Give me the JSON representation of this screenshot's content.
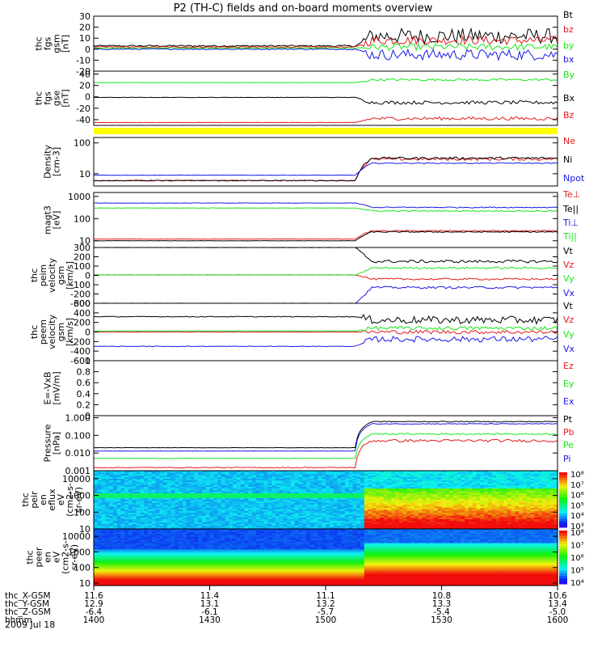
{
  "title": "P2 (TH-C) fields and on-board moments overview",
  "date": "2009 Jul 18",
  "colors": {
    "black": "#000000",
    "red": "#e41a1c",
    "green": "#19e619",
    "blue": "#1919e6",
    "yellow": "#ffff00"
  },
  "chart_data": [
    {
      "type": "line",
      "panel": "fgs-gsm",
      "ylabel_lines": [
        "thc",
        "fgs",
        "gsm",
        "[nT]"
      ],
      "yticks": [
        30,
        20,
        10,
        0,
        -10,
        -20
      ],
      "ylim": [
        -20,
        30
      ],
      "x_range": [
        "14:00",
        "16:00"
      ],
      "series": [
        {
          "name": "Bt",
          "color": "black",
          "before": 3,
          "after": 12,
          "noise": 7
        },
        {
          "name": "bz",
          "color": "red",
          "before": 2,
          "after": 8,
          "noise": 4
        },
        {
          "name": "by",
          "color": "green",
          "before": 1,
          "after": 2,
          "noise": 3
        },
        {
          "name": "bx",
          "color": "blue",
          "before": 0,
          "after": -5,
          "noise": 5
        }
      ]
    },
    {
      "type": "line",
      "panel": "fgs-gse",
      "ylabel_lines": [
        "thc",
        "fgs",
        "gse",
        "[nT]"
      ],
      "yticks": [
        40,
        20,
        0,
        -20,
        -40
      ],
      "ylim": [
        -50,
        45
      ],
      "series": [
        {
          "name": "By",
          "color": "green",
          "before": 25,
          "after": 30,
          "noise": 2
        },
        {
          "name": "Bx",
          "color": "black",
          "before": -1,
          "after": -10,
          "noise": 3
        },
        {
          "name": "Bz",
          "color": "red",
          "before": -45,
          "after": -38,
          "noise": 3
        }
      ]
    },
    {
      "type": "line",
      "panel": "density",
      "ylabel_lines": [
        "Density",
        "[cm-3]"
      ],
      "log": true,
      "yticks": [
        100,
        10
      ],
      "ylim": [
        4,
        150
      ],
      "series": [
        {
          "name": "Ne",
          "color": "red",
          "before": 6,
          "after": 30,
          "noise": 0.1
        },
        {
          "name": "Ni",
          "color": "black",
          "before": 6,
          "after": 32,
          "noise": 0.08
        },
        {
          "name": "Npot",
          "color": "blue",
          "before": 9,
          "after": 22,
          "noise": 0.03
        }
      ]
    },
    {
      "type": "line",
      "panel": "temperature",
      "ylabel_lines": [
        "magt3",
        "[eV]"
      ],
      "log": true,
      "yticks": [
        1000,
        100,
        10
      ],
      "ylim": [
        5,
        1500
      ],
      "series": [
        {
          "name": "Te⊥",
          "color": "red",
          "before": 12,
          "after": 28,
          "noise": 0.05
        },
        {
          "name": "Te||",
          "color": "black",
          "before": 10,
          "after": 25,
          "noise": 0.05
        },
        {
          "name": "Ti⊥",
          "color": "blue",
          "before": 500,
          "after": 320,
          "noise": 0.05
        },
        {
          "name": "Ti||",
          "color": "green",
          "before": 300,
          "after": 220,
          "noise": 0.05
        }
      ]
    },
    {
      "type": "line",
      "panel": "esa-velocity",
      "ylabel_lines": [
        "thc",
        "peim",
        "velocity",
        "gsm",
        "[km/s]"
      ],
      "yticks": [
        300,
        200,
        100,
        0,
        -100,
        -200,
        -300
      ],
      "ylim": [
        -300,
        300
      ],
      "series": [
        {
          "name": "Vt",
          "color": "black",
          "before": 300,
          "after": 150,
          "noise": 15
        },
        {
          "name": "Vz",
          "color": "red",
          "before": 5,
          "after": -40,
          "noise": 10
        },
        {
          "name": "Vy",
          "color": "green",
          "before": 5,
          "after": 80,
          "noise": 10
        },
        {
          "name": "Vx",
          "color": "blue",
          "before": -300,
          "after": -130,
          "noise": 12
        }
      ]
    },
    {
      "type": "line",
      "panel": "esa-velocity-2",
      "ylabel_lines": [
        "thc",
        "peem",
        "velocity",
        "gsm",
        "[km/s]"
      ],
      "yticks": [
        600,
        400,
        200,
        0,
        -200,
        -400,
        -600
      ],
      "ylim": [
        -600,
        600
      ],
      "series": [
        {
          "name": "Vt",
          "color": "black",
          "before": 320,
          "after": 250,
          "noise": 80
        },
        {
          "name": "Vz",
          "color": "red",
          "before": 0,
          "after": 0,
          "noise": 40
        },
        {
          "name": "Vy",
          "color": "green",
          "before": 20,
          "after": 80,
          "noise": 40
        },
        {
          "name": "Vx",
          "color": "blue",
          "before": -300,
          "after": -150,
          "noise": 60
        }
      ]
    },
    {
      "type": "line",
      "panel": "efield",
      "ylabel_lines": [
        "E=-VxB",
        "[mV/m]"
      ],
      "yticks": [
        1.0,
        0.8,
        0.6,
        0.4,
        0.2,
        0.0
      ],
      "ylim": [
        0,
        1
      ],
      "series": [
        {
          "name": "Ez",
          "color": "red"
        },
        {
          "name": "Ey",
          "color": "green"
        },
        {
          "name": "Ex",
          "color": "blue"
        }
      ]
    },
    {
      "type": "line",
      "panel": "pressure",
      "ylabel_lines": [
        "Pressure",
        "[nPa]"
      ],
      "log": true,
      "ytick_labels": [
        "1.000",
        "0.100",
        "0.010",
        "0.001"
      ],
      "yticks": [
        1,
        0.1,
        0.01,
        0.001
      ],
      "ylim": [
        0.001,
        1.3
      ],
      "series": [
        {
          "name": "Pt",
          "color": "black",
          "before": 0.02,
          "after": 0.6,
          "noise": 0.05
        },
        {
          "name": "Pb",
          "color": "red",
          "before": 0.0015,
          "after": 0.05,
          "noise": 0.15
        },
        {
          "name": "Pe",
          "color": "green",
          "before": 0.005,
          "after": 0.12,
          "noise": 0.08
        },
        {
          "name": "Pi",
          "color": "blue",
          "before": 0.013,
          "after": 0.45,
          "noise": 0.04
        }
      ]
    },
    {
      "type": "heatmap",
      "panel": "peir-en-eflux",
      "ylabel_lines": [
        "thc",
        "peir",
        "en",
        "eflux",
        "eV",
        "(cm2-s-",
        "sr-eV)"
      ],
      "log": true,
      "yticks": [
        10000,
        1000,
        100,
        10
      ],
      "ylim": [
        10,
        30000
      ],
      "colorbar_labels": [
        "10⁸",
        "10⁷",
        "10⁶",
        "10⁵",
        "10⁴",
        "10³"
      ]
    },
    {
      "type": "heatmap",
      "panel": "peer-en-eflux",
      "ylabel_lines": [
        "thc",
        "peer",
        "en",
        "eV",
        "(cm2-s-",
        "sr-eV)"
      ],
      "log": true,
      "yticks": [
        10000,
        1000,
        100,
        10
      ],
      "ylim": [
        7,
        30000
      ],
      "colorbar_labels": [
        "10⁸",
        "10⁷",
        "10⁶",
        "10⁵",
        "10⁴"
      ]
    }
  ],
  "x_axis": {
    "row_labels": [
      "thc_X-GSM",
      "thc_Y-GSM",
      "thc_Z-GSM",
      "hhmm"
    ],
    "ticks": [
      {
        "values": [
          "11.6",
          "12.9",
          "-6.4",
          "1400"
        ]
      },
      {
        "values": [
          "11.4",
          "13.1",
          "-6.1",
          "1430"
        ]
      },
      {
        "values": [
          "11.1",
          "13.2",
          "-5.7",
          "1500"
        ]
      },
      {
        "values": [
          "10.8",
          "13.3",
          "-5.4",
          "1530"
        ]
      },
      {
        "values": [
          "10.6",
          "13.4",
          "-5.0",
          "1600"
        ]
      }
    ],
    "transition_fraction": 0.58
  }
}
